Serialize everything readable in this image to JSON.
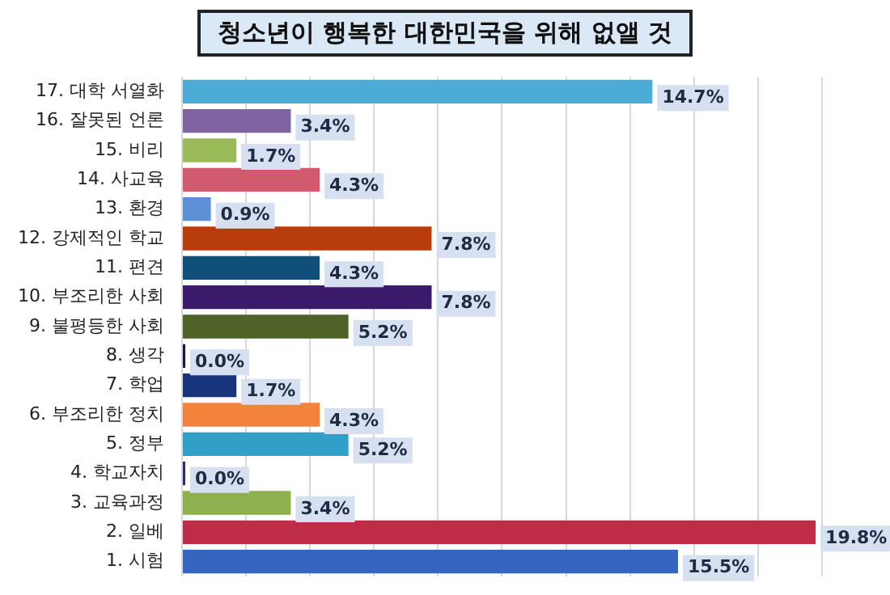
{
  "chart_data": {
    "type": "bar",
    "orientation": "horizontal",
    "title": "청소년이 행복한 대한민국을 위해 없앨 것",
    "categories": [
      "17. 대학 서열화",
      "16. 잘못된 언론",
      "15. 비리",
      "14. 사교육",
      "13. 환경",
      "12. 강제적인 학교",
      "11. 편견",
      "10. 부조리한 사회",
      "9. 불평등한 사회",
      "8. 생각",
      "7. 학업",
      "6. 부조리한 정치",
      "5. 정부",
      "4. 학교자치",
      "3. 교육과정",
      "2. 일베",
      "1. 시험"
    ],
    "values": [
      14.7,
      3.4,
      1.7,
      4.3,
      0.9,
      7.8,
      4.3,
      7.8,
      5.2,
      0.0,
      1.7,
      4.3,
      5.2,
      0.0,
      3.4,
      19.8,
      15.5
    ],
    "colors": [
      "#4bacd6",
      "#8064a2",
      "#9bbb59",
      "#d05a6e",
      "#5b8fd6",
      "#b83c0c",
      "#0f4f7a",
      "#3b1a6b",
      "#4f6228",
      "#1a1040",
      "#17337a",
      "#f3823c",
      "#31a0c9",
      "#2a2a6a",
      "#8fb04f",
      "#be2d45",
      "#3466c0"
    ],
    "value_labels": [
      "14.7%",
      "3.4%",
      "1.7%",
      "4.3%",
      "0.9%",
      "7.8%",
      "4.3%",
      "7.8%",
      "5.2%",
      "0.0%",
      "1.7%",
      "4.3%",
      "5.2%",
      "0.0%",
      "3.4%",
      "19.8%",
      "15.5%"
    ],
    "xlim": [
      0,
      20
    ],
    "xticks": [
      {
        "value": 0,
        "label": null
      },
      {
        "value": 2,
        "label": null
      },
      {
        "value": 4,
        "label": null
      },
      {
        "value": 6,
        "label": null
      },
      {
        "value": 8,
        "label": null
      },
      {
        "value": 10,
        "label": null
      },
      {
        "value": 12,
        "label": null
      },
      {
        "value": 14,
        "label": null
      },
      {
        "value": 16,
        "label": null
      },
      {
        "value": 18,
        "label": null
      },
      {
        "value": 20,
        "label": null
      }
    ],
    "tick_labels": "y",
    "grid": "x",
    "legend": false
  }
}
